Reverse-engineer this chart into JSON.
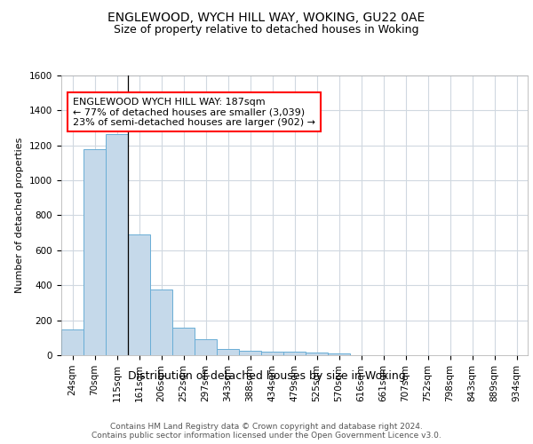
{
  "title1": "ENGLEWOOD, WYCH HILL WAY, WOKING, GU22 0AE",
  "title2": "Size of property relative to detached houses in Woking",
  "xlabel": "Distribution of detached houses by size in Woking",
  "ylabel": "Number of detached properties",
  "bar_color": "#c5d9ea",
  "bar_edge_color": "#6aaed6",
  "categories": [
    "24sqm",
    "70sqm",
    "115sqm",
    "161sqm",
    "206sqm",
    "252sqm",
    "297sqm",
    "343sqm",
    "388sqm",
    "434sqm",
    "479sqm",
    "525sqm",
    "570sqm",
    "616sqm",
    "661sqm",
    "707sqm",
    "752sqm",
    "798sqm",
    "843sqm",
    "889sqm",
    "934sqm"
  ],
  "values": [
    148,
    1180,
    1265,
    690,
    375,
    160,
    90,
    35,
    25,
    22,
    22,
    15,
    8,
    0,
    0,
    0,
    0,
    0,
    0,
    0,
    0
  ],
  "ylim": [
    0,
    1600
  ],
  "yticks": [
    0,
    200,
    400,
    600,
    800,
    1000,
    1200,
    1400,
    1600
  ],
  "annotation_text": "ENGLEWOOD WYCH HILL WAY: 187sqm\n← 77% of detached houses are smaller (3,039)\n23% of semi-detached houses are larger (902) →",
  "vline_x": 2.5,
  "vline_color": "#000000",
  "footer_text": "Contains HM Land Registry data © Crown copyright and database right 2024.\nContains public sector information licensed under the Open Government Licence v3.0.",
  "bg_color": "#ffffff",
  "plot_bg_color": "#ffffff",
  "grid_color": "#d0d8e0",
  "title1_fontsize": 10,
  "title2_fontsize": 9,
  "xlabel_fontsize": 9,
  "ylabel_fontsize": 8,
  "tick_fontsize": 7.5,
  "annotation_fontsize": 8,
  "footer_fontsize": 6.5
}
